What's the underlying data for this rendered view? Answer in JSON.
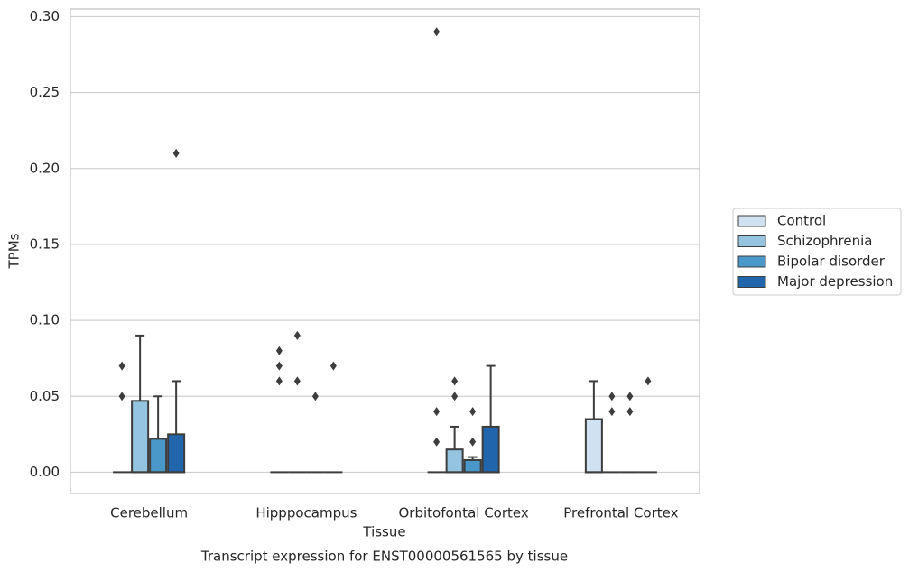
{
  "chart_data": {
    "type": "box",
    "title": "Transcript expression for ENST00000561565 by tissue",
    "x_label": "Tissue",
    "y_label": "TPMs",
    "categories": [
      "Cerebellum",
      "Hipppocampus",
      "Orbitofontal Cortex",
      "Prefrontal Cortex"
    ],
    "ylim": [
      -0.014,
      0.305
    ],
    "yticks": [
      {
        "value": 0,
        "label": "0.00"
      },
      {
        "value": 0.05,
        "label": "0.05"
      },
      {
        "value": 0.1,
        "label": "0.10"
      },
      {
        "value": 0.15,
        "label": "0.15"
      },
      {
        "value": 0.2,
        "label": "0.20"
      },
      {
        "value": 0.25,
        "label": "0.25"
      },
      {
        "value": 0.3,
        "label": "0.30"
      }
    ],
    "grid": true,
    "series": [
      {
        "name": "Control",
        "color": "#d0e1f2",
        "boxes": [
          {
            "whislo": 0,
            "q1": 0,
            "med": 0,
            "q3": 0,
            "whishi": 0,
            "fliers": [
              0.05,
              0.07
            ]
          },
          {
            "whislo": 0,
            "q1": 0,
            "med": 0,
            "q3": 0,
            "whishi": 0,
            "fliers": [
              0.06,
              0.07,
              0.08
            ]
          },
          {
            "whislo": 0,
            "q1": 0,
            "med": 0,
            "q3": 0,
            "whishi": 0,
            "fliers": [
              0.02,
              0.04,
              0.29
            ]
          },
          {
            "whislo": 0,
            "q1": 0,
            "med": 0,
            "q3": 0.035,
            "whishi": 0.06,
            "fliers": []
          }
        ]
      },
      {
        "name": "Schizophrenia",
        "color": "#94c4df",
        "boxes": [
          {
            "whislo": 0,
            "q1": 0,
            "med": 0,
            "q3": 0.047,
            "whishi": 0.09,
            "fliers": []
          },
          {
            "whislo": 0,
            "q1": 0,
            "med": 0,
            "q3": 0,
            "whishi": 0,
            "fliers": [
              0.06,
              0.09
            ]
          },
          {
            "whislo": 0,
            "q1": 0,
            "med": 0,
            "q3": 0.015,
            "whishi": 0.03,
            "fliers": [
              0.05,
              0.06
            ]
          },
          {
            "whislo": 0,
            "q1": 0,
            "med": 0,
            "q3": 0,
            "whishi": 0,
            "fliers": [
              0.04,
              0.05
            ]
          }
        ]
      },
      {
        "name": "Bipolar disorder",
        "color": "#4a98c9",
        "boxes": [
          {
            "whislo": 0,
            "q1": 0,
            "med": 0,
            "q3": 0.022,
            "whishi": 0.05,
            "fliers": []
          },
          {
            "whislo": 0,
            "q1": 0,
            "med": 0,
            "q3": 0,
            "whishi": 0,
            "fliers": [
              0.05
            ]
          },
          {
            "whislo": 0,
            "q1": 0,
            "med": 0,
            "q3": 0.008,
            "whishi": 0.01,
            "fliers": [
              0.02,
              0.04
            ]
          },
          {
            "whislo": 0,
            "q1": 0,
            "med": 0,
            "q3": 0,
            "whishi": 0,
            "fliers": [
              0.04,
              0.05
            ]
          }
        ]
      },
      {
        "name": "Major depression",
        "color": "#2166ac",
        "boxes": [
          {
            "whislo": 0,
            "q1": 0,
            "med": 0,
            "q3": 0.025,
            "whishi": 0.06,
            "fliers": [
              0.21
            ]
          },
          {
            "whislo": 0,
            "q1": 0,
            "med": 0,
            "q3": 0,
            "whishi": 0,
            "fliers": [
              0.07
            ]
          },
          {
            "whislo": 0,
            "q1": 0,
            "med": 0,
            "q3": 0.03,
            "whishi": 0.07,
            "fliers": []
          },
          {
            "whislo": 0,
            "q1": 0,
            "med": 0,
            "q3": 0,
            "whishi": 0,
            "fliers": [
              0.06
            ]
          }
        ]
      }
    ]
  }
}
